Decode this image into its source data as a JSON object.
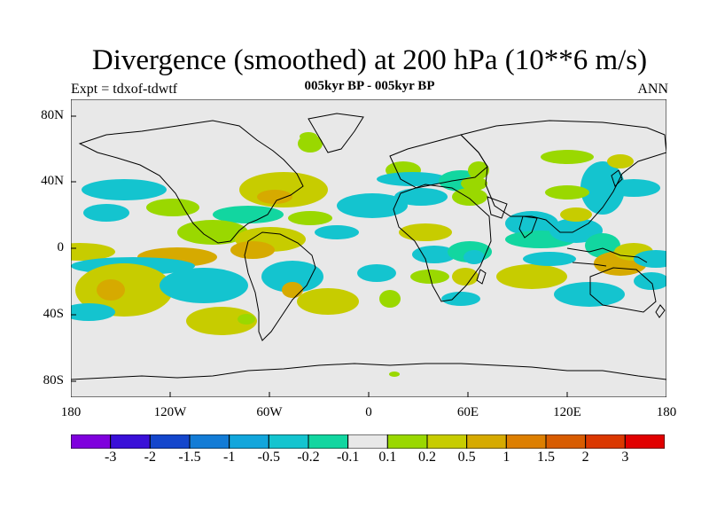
{
  "title": "Divergence (smoothed) at 200 hPa (10**6 m/s)",
  "experiment": "Expt = tdxof-tdwtf",
  "subtitle": "005kyr BP - 005kyr BP",
  "season": "ANN",
  "x_ticks": [
    "180",
    "120W",
    "60W",
    "0",
    "60E",
    "120E",
    "180"
  ],
  "y_ticks": [
    "80N",
    "40N",
    "0",
    "40S",
    "80S"
  ],
  "colorbar": {
    "colors": [
      "#7f00dd",
      "#3a10d8",
      "#1446cc",
      "#137cd6",
      "#12a6dc",
      "#14c4cf",
      "#12d6a0",
      "#e8e8e8",
      "#9ad800",
      "#c7cc00",
      "#d6aa00",
      "#dd7f00",
      "#d85c00",
      "#db3800",
      "#e10000"
    ],
    "labels": [
      "-3",
      "-2",
      "-1.5",
      "-1",
      "-0.5",
      "-0.2",
      "-0.1",
      "0.1",
      "0.2",
      "0.5",
      "1",
      "1.5",
      "2",
      "3"
    ]
  },
  "colors": {
    "background": "#e8e8e8",
    "negative": "#14c4cf",
    "weak_negative": "#12d6a0",
    "weak_positive": "#9ad800",
    "positive": "#c7cc00",
    "strong_positive": "#d6aa00"
  }
}
